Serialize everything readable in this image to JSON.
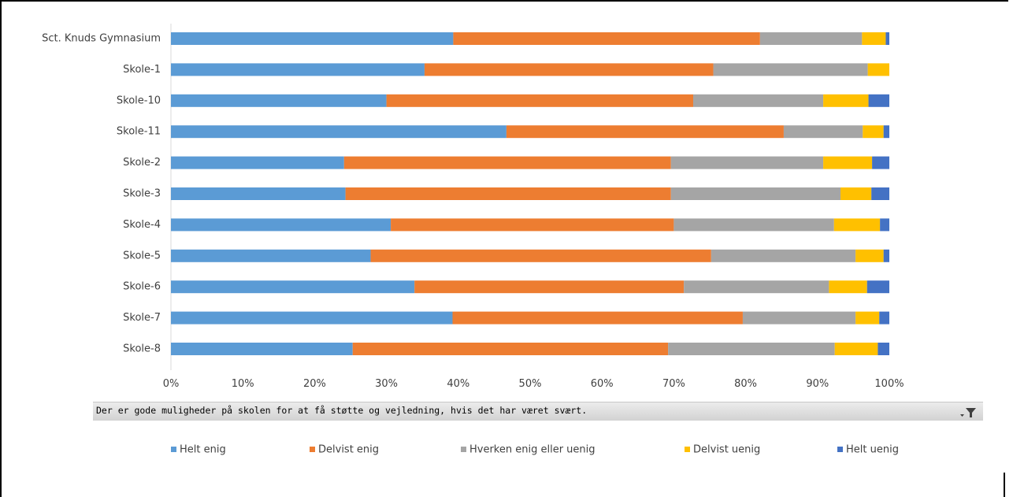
{
  "chart_data": {
    "type": "bar",
    "orientation": "horizontal",
    "stacked": "percent",
    "categories": [
      "Sct. Knuds Gymnasium",
      "Skole-1",
      "Skole-10",
      "Skole-11",
      "Skole-2",
      "Skole-3",
      "Skole-4",
      "Skole-5",
      "Skole-6",
      "Skole-7",
      "Skole-8"
    ],
    "series": [
      {
        "name": "Helt enig",
        "color": "#5b9bd5",
        "values": [
          39.3,
          35.3,
          30.0,
          46.7,
          24.1,
          24.3,
          30.6,
          27.8,
          33.9,
          39.2,
          25.3
        ]
      },
      {
        "name": "Delvist enig",
        "color": "#ed7d31",
        "values": [
          42.7,
          40.2,
          42.7,
          38.6,
          45.5,
          45.3,
          39.4,
          47.4,
          37.5,
          40.4,
          43.9
        ]
      },
      {
        "name": "Hverken enig eller uenig",
        "color": "#a5a5a5",
        "values": [
          14.2,
          21.5,
          18.1,
          11.0,
          21.2,
          23.6,
          22.3,
          20.1,
          20.2,
          15.7,
          23.2
        ]
      },
      {
        "name": "Delvist uenig",
        "color": "#ffc000",
        "values": [
          3.3,
          3.0,
          6.3,
          2.9,
          6.8,
          4.3,
          6.4,
          3.9,
          5.3,
          3.3,
          6.0
        ]
      },
      {
        "name": "Helt uenig",
        "color": "#4472c4",
        "values": [
          0.5,
          0.0,
          2.9,
          0.8,
          2.4,
          2.5,
          1.3,
          0.8,
          3.1,
          1.4,
          1.6
        ]
      }
    ],
    "xlim": [
      0,
      100
    ],
    "x_ticks": [
      "0%",
      "10%",
      "20%",
      "30%",
      "40%",
      "50%",
      "60%",
      "70%",
      "80%",
      "90%",
      "100%"
    ],
    "grid": false,
    "legend": "bottom"
  },
  "filter": {
    "text": "Der er gode muligheder på skolen for at få støtte og vejledning, hvis det har været svært.",
    "icon": "filter-dropdown-icon"
  }
}
